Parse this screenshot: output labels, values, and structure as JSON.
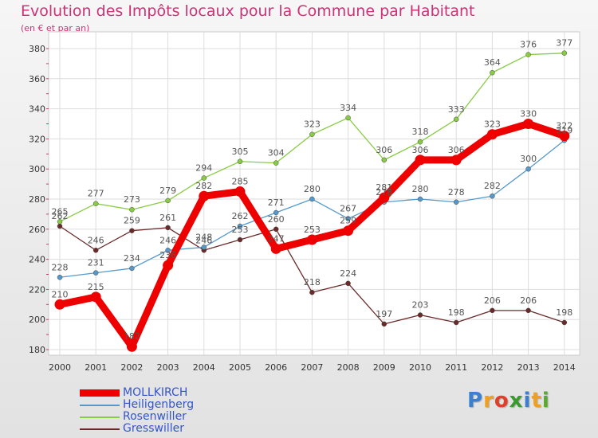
{
  "header": {
    "title": "Evolution des Impôts locaux pour la Commune par Habitant",
    "subtitle": "(en € et par an)"
  },
  "logo": {
    "letters": [
      "P",
      "r",
      "o",
      "x",
      "i",
      "t",
      "i"
    ],
    "colors": [
      "#3a7fd0",
      "#f0a020",
      "#e0402a",
      "#3a9a30",
      "#3a7fd0",
      "#f0a020",
      "#5aaa30"
    ]
  },
  "chart_data": {
    "type": "line",
    "x": [
      2000,
      2001,
      2002,
      2003,
      2004,
      2005,
      2006,
      2007,
      2008,
      2009,
      2010,
      2011,
      2012,
      2013,
      2014
    ],
    "ylim": [
      180,
      380
    ],
    "yticks": [
      180,
      200,
      220,
      240,
      260,
      280,
      300,
      320,
      340,
      360,
      380
    ],
    "grid": true,
    "legend_position": "bottom-left",
    "series": [
      {
        "name": "MOLLKIRCH",
        "color": "#ee0000",
        "values": [
          210,
          215,
          182,
          236,
          282,
          285,
          247,
          253,
          259,
          281,
          306,
          306,
          323,
          330,
          322
        ]
      },
      {
        "name": "Heiligenberg",
        "color": "#5599cc",
        "values": [
          228,
          231,
          234,
          246,
          248,
          262,
          271,
          280,
          267,
          278,
          280,
          278,
          282,
          300,
          319
        ]
      },
      {
        "name": "Rosenwiller",
        "color": "#88cc44",
        "values": [
          265,
          277,
          273,
          279,
          294,
          305,
          304,
          323,
          334,
          306,
          318,
          333,
          364,
          376,
          377
        ]
      },
      {
        "name": "Gresswiller",
        "color": "#6b2a2a",
        "values": [
          262,
          246,
          259,
          261,
          246,
          253,
          260,
          218,
          224,
          197,
          203,
          198,
          206,
          206,
          198
        ]
      }
    ]
  }
}
